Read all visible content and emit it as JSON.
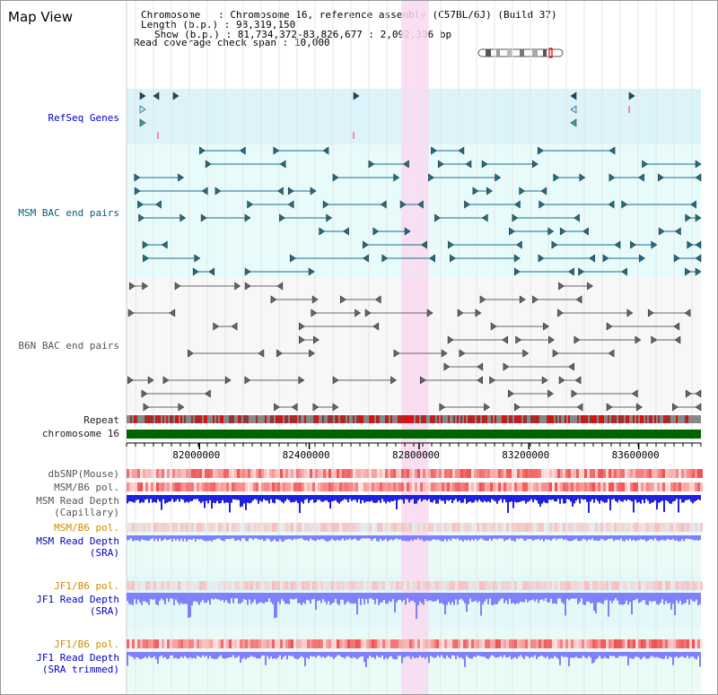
{
  "app": {
    "title": "Map View"
  },
  "header": {
    "chromosome_key": "Chromosome",
    "chromosome_val": "Chromosome 16, reference assembly (C57BL/6J) (Build 37)",
    "length_key": "Length (b.p.)",
    "length_val": "98,319,150",
    "show_key": "Show (b.p.)",
    "show_val": "81,734,372-83,826,677 : 2,092,306 bp",
    "read_cov_key": "Read coverage check span",
    "read_cov_val": "10,000"
  },
  "tracks": {
    "refseq": "RefSeq Genes",
    "msm_bac": "MSM BAC end pairs",
    "b6n_bac": "B6N BAC end pairs",
    "repeat": "Repeat",
    "chrom": "chromosome 16",
    "dbsnp": "dbSNP(Mouse)",
    "msm_b6_pol_1": "MSM/B6 pol.",
    "msm_rd_cap_1": "MSM Read Depth",
    "msm_rd_cap_2": "(Capillary)",
    "msm_b6_pol_2": "MSM/B6 pol.",
    "msm_rd_sra_1": "MSM Read Depth",
    "msm_rd_sra_2": "(SRA)",
    "jf1_b6_pol_1": "JF1/B6 pol.",
    "jf1_rd_sra_1": "JF1 Read Depth",
    "jf1_rd_sra_2": "(SRA)",
    "jf1_b6_pol_2": "JF1/B6 pol.",
    "jf1_rd_trim_1": "JF1 Read Depth",
    "jf1_rd_trim_2": "(SRA trimmed)"
  },
  "axis": {
    "ticks": [
      "82000000",
      "82400000",
      "82800000",
      "83200000",
      "83600000"
    ],
    "tick_values": [
      82000000,
      82400000,
      82800000,
      83200000,
      83600000
    ],
    "range_start": 81734372,
    "range_end": 83826677
  },
  "highlight": {
    "start": 82735000,
    "end": 82835000
  },
  "colors": {
    "refseq_bg": "#dcf3fa",
    "highlight": "#f9d9f2",
    "chrom_bar": "#006400",
    "msm_line": "#1a6e8a",
    "b6n_line": "#666666",
    "depth_blue": "#2020e0",
    "depth_light": "#8080ff",
    "pol_red": "#ff2020"
  },
  "icons": [
    "feature-arrow-icon",
    "ideogram-icon"
  ]
}
